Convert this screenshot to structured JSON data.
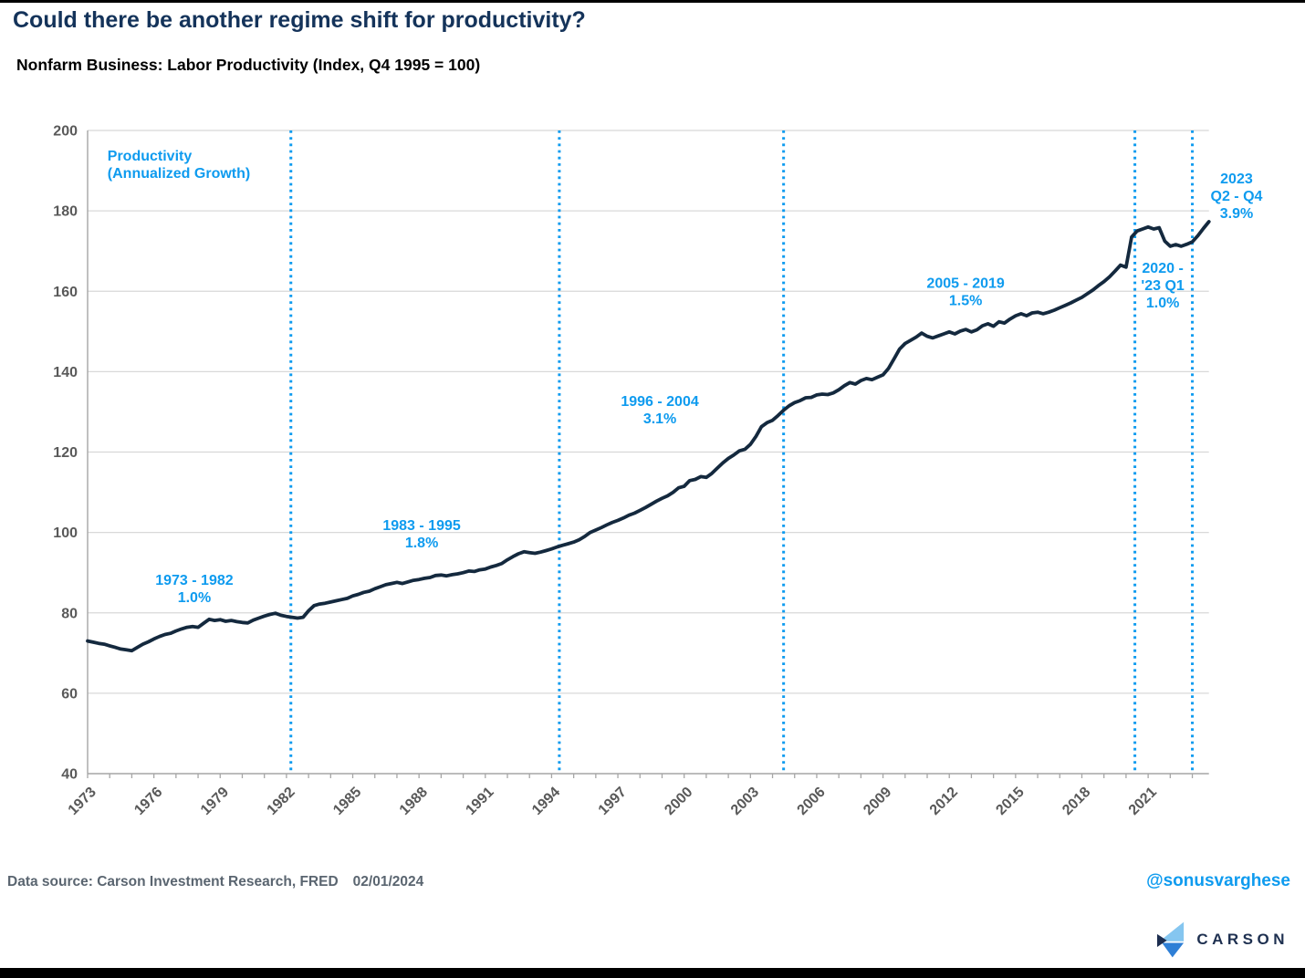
{
  "page": {
    "title": "Could there be another regime shift for productivity?",
    "subtitle": "Nonfarm Business: Labor Productivity (Index, Q4 1995 = 100)",
    "footer": {
      "source": "Data source: Carson Investment Research, FRED",
      "date": "02/01/2024"
    },
    "handle": "@sonusvarghese",
    "logo_text": "CARSON"
  },
  "chart_data": {
    "type": "line",
    "title": "Could there be another regime shift for productivity?",
    "subtitle": "Nonfarm Business: Labor Productivity (Index, Q4 1995 = 100)",
    "series_name": "Labor Productivity Index (Q4 1995 = 100)",
    "frequency": "quarterly",
    "x_start_year": 1973,
    "x_step_years": 0.25,
    "xlim": [
      1973,
      2023.75
    ],
    "ylim": [
      40,
      200
    ],
    "y_tick_step": 20,
    "y_tick_labels": [
      40,
      60,
      80,
      100,
      120,
      140,
      160,
      180,
      200
    ],
    "x_tick_label_years": [
      1973,
      1976,
      1979,
      1982,
      1985,
      1988,
      1991,
      1994,
      1997,
      2000,
      2003,
      2006,
      2009,
      2012,
      2015,
      2018,
      2021
    ],
    "x_minor_tick_every_years": 1,
    "grid": "horizontal",
    "legend_position": "none",
    "values": [
      73.0,
      72.7,
      72.4,
      72.2,
      71.8,
      71.4,
      71.0,
      70.8,
      70.6,
      71.4,
      72.2,
      72.8,
      73.5,
      74.1,
      74.6,
      74.9,
      75.5,
      76.0,
      76.4,
      76.6,
      76.4,
      77.4,
      78.4,
      78.1,
      78.3,
      77.9,
      78.1,
      77.8,
      77.6,
      77.5,
      78.2,
      78.7,
      79.2,
      79.6,
      79.9,
      79.4,
      79.1,
      78.9,
      78.7,
      78.9,
      80.5,
      81.8,
      82.2,
      82.4,
      82.7,
      83.0,
      83.3,
      83.6,
      84.2,
      84.6,
      85.1,
      85.4,
      86.0,
      86.5,
      87.0,
      87.3,
      87.6,
      87.3,
      87.7,
      88.1,
      88.3,
      88.6,
      88.8,
      89.3,
      89.4,
      89.2,
      89.5,
      89.7,
      90.0,
      90.4,
      90.3,
      90.7,
      90.9,
      91.4,
      91.8,
      92.3,
      93.2,
      94.0,
      94.7,
      95.2,
      95.0,
      94.8,
      95.1,
      95.5,
      95.9,
      96.4,
      96.8,
      97.2,
      97.6,
      98.2,
      99.0,
      100.0,
      100.6,
      101.2,
      101.9,
      102.5,
      103.0,
      103.6,
      104.3,
      104.8,
      105.5,
      106.2,
      107.0,
      107.8,
      108.5,
      109.1,
      110.0,
      111.1,
      111.5,
      112.9,
      113.2,
      113.9,
      113.7,
      114.7,
      116.0,
      117.3,
      118.4,
      119.3,
      120.3,
      120.7,
      121.9,
      123.9,
      126.3,
      127.3,
      127.9,
      129.1,
      130.4,
      131.5,
      132.3,
      132.8,
      133.5,
      133.6,
      134.2,
      134.4,
      134.3,
      134.7,
      135.5,
      136.5,
      137.3,
      136.9,
      137.8,
      138.3,
      138.0,
      138.6,
      139.2,
      140.8,
      143.2,
      145.6,
      147.0,
      147.8,
      148.6,
      149.6,
      148.8,
      148.4,
      148.9,
      149.4,
      149.9,
      149.4,
      150.1,
      150.5,
      149.9,
      150.4,
      151.4,
      151.9,
      151.3,
      152.4,
      152.1,
      153.1,
      153.9,
      154.4,
      153.9,
      154.6,
      154.8,
      154.4,
      154.8,
      155.3,
      155.9,
      156.5,
      157.1,
      157.8,
      158.5,
      159.4,
      160.3,
      161.4,
      162.4,
      163.6,
      165.0,
      166.5,
      166.0,
      173.5,
      175.0,
      175.5,
      176.0,
      175.5,
      175.8,
      172.5,
      171.2,
      171.6,
      171.2,
      171.7,
      172.3,
      173.8,
      175.6,
      177.3
    ],
    "regime_divider_years": [
      1982.2,
      1994.35,
      2004.5,
      2020.4,
      2023.0
    ],
    "annotations": [
      {
        "name": "series-label",
        "lines": [
          "Productivity",
          "(Annualized Growth)"
        ],
        "x_year": 1973.9,
        "v_baseline": 192.5,
        "align": "start"
      },
      {
        "name": "regime-1973-1982",
        "lines": [
          "1973 - 1982",
          "1.0%"
        ],
        "x_year": 1977.83,
        "v_baseline": 87.0,
        "align": "middle"
      },
      {
        "name": "regime-1983-1995",
        "lines": [
          "1983 - 1995",
          "1.8%"
        ],
        "x_year": 1988.12,
        "v_baseline": 100.6,
        "align": "middle"
      },
      {
        "name": "regime-1996-2004",
        "lines": [
          "1996 - 2004",
          "3.1%"
        ],
        "x_year": 1998.9,
        "v_baseline": 131.5,
        "align": "middle"
      },
      {
        "name": "regime-2005-2019",
        "lines": [
          "2005 - 2019",
          "1.5%"
        ],
        "x_year": 2012.74,
        "v_baseline": 160.8,
        "align": "middle"
      },
      {
        "name": "regime-2020-23q1",
        "lines": [
          "2020 -",
          "'23 Q1",
          "1.0%"
        ],
        "x_year": 2021.66,
        "v_baseline": 164.6,
        "align": "middle"
      },
      {
        "name": "regime-2023-q2q4",
        "lines": [
          "2023",
          "Q2 - Q4",
          "3.9%"
        ],
        "x_year": 2025.0,
        "v_baseline": 186.8,
        "align": "middle"
      }
    ],
    "colors": {
      "line": "#14293E",
      "accent_blue": "#0E9BEF",
      "grid": "#D8D8D8",
      "axis": "#A6A6A6",
      "tick_label": "#595959",
      "title_navy": "#14335A",
      "footer_gray": "#5A6570",
      "logo_navy": "#1E3050",
      "logo_light_blue": "#85C6F0",
      "logo_mid_blue": "#2E7FD6"
    }
  }
}
